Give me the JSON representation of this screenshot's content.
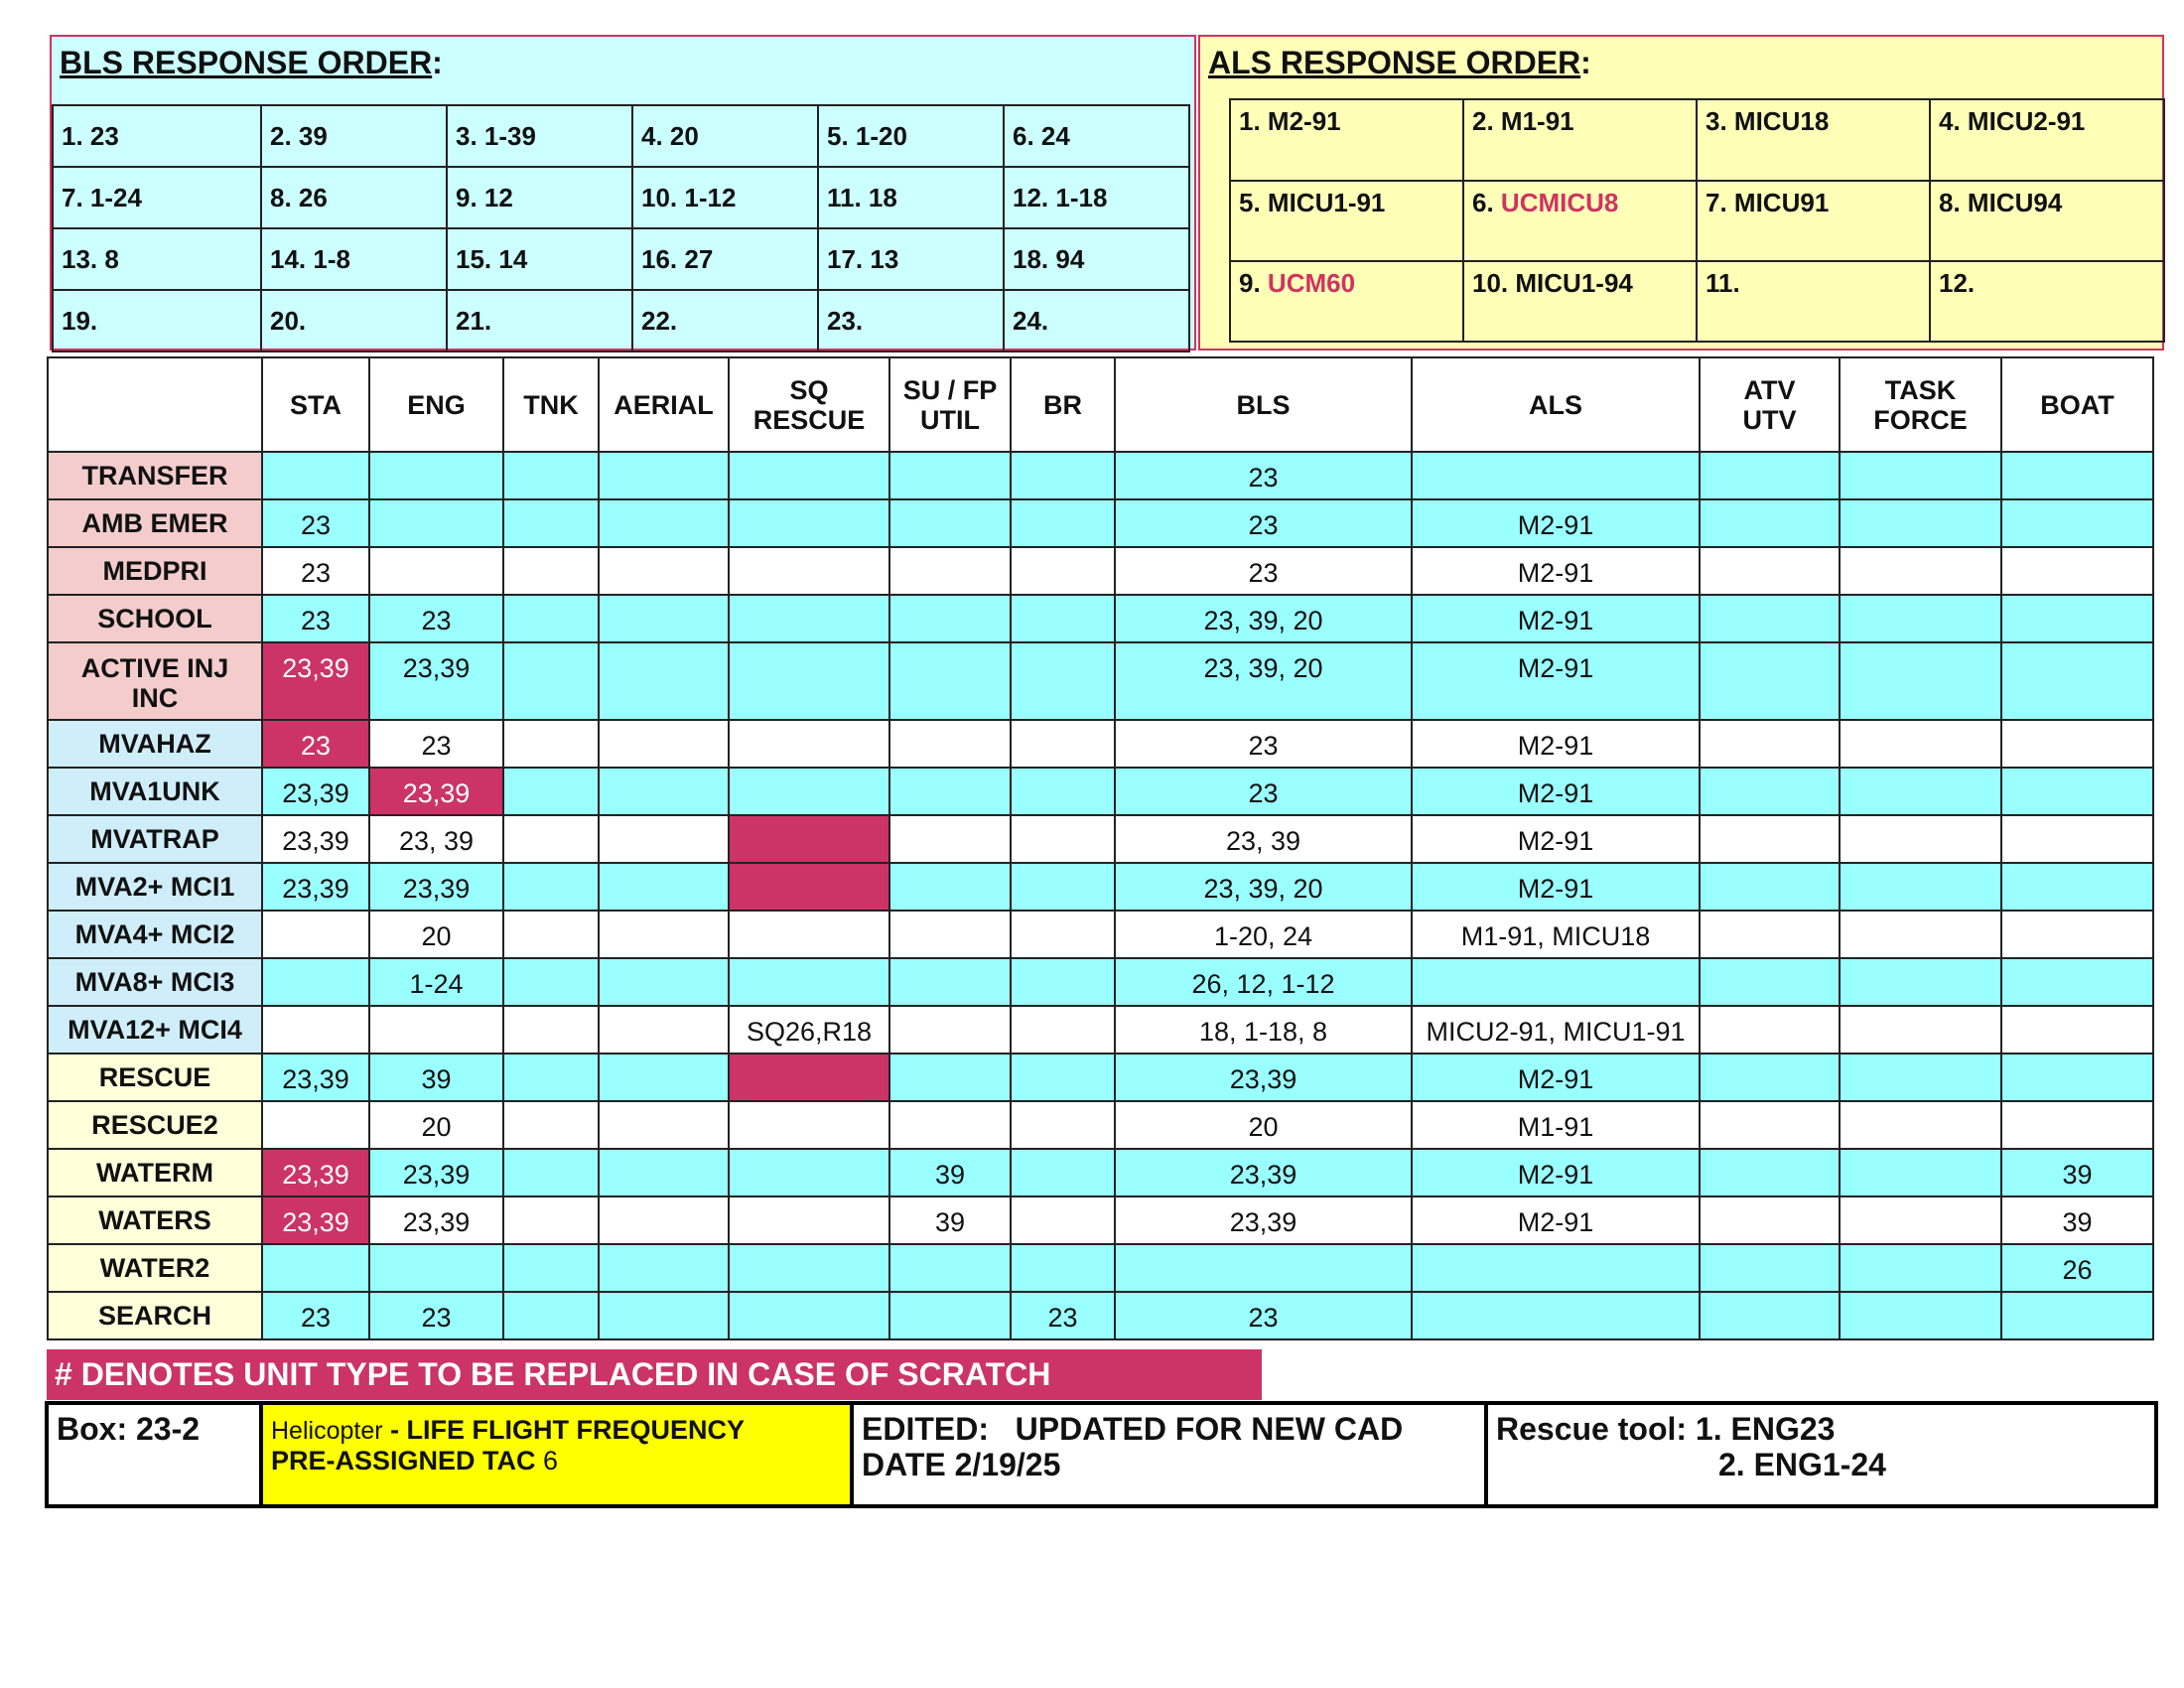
{
  "bls": {
    "title": "BLS RESPONSE ORDER",
    "colon": ":",
    "cells": [
      "1. 23",
      "2. 39",
      "3. 1-39",
      "4. 20",
      "5. 1-20",
      "6. 24",
      "7. 1-24",
      "8. 26",
      "9. 12",
      "10. 1-12",
      "11. 18",
      "12. 1-18",
      "13. 8",
      "14. 1-8",
      "15. 14",
      "16. 27",
      "17. 13",
      "18. 94",
      "19.",
      "20.",
      "21.",
      "22.",
      "23.",
      "24."
    ]
  },
  "als": {
    "title": "ALS RESPONSE ORDER",
    "colon": ":",
    "cells": [
      {
        "num": "1.",
        "unit": "M2-91"
      },
      {
        "num": "2.",
        "unit": "M1-91"
      },
      {
        "num": "3.",
        "unit": "MICU18"
      },
      {
        "num": "4.",
        "unit": "MICU2-91"
      },
      {
        "num": "5.",
        "unit": "MICU1-91"
      },
      {
        "num": "6.",
        "unit": "UCMICU8",
        "color": "#d0335f"
      },
      {
        "num": "7.",
        "unit": "MICU91"
      },
      {
        "num": "8.",
        "unit": "MICU94"
      },
      {
        "num": "9.",
        "unit": "UCM60",
        "color": "#d0335f"
      },
      {
        "num": "10.",
        "unit": "MICU1-94"
      },
      {
        "num": "11."
      },
      {
        "num": "12."
      }
    ]
  },
  "table": {
    "columns": [
      "STA",
      "ENG",
      "TNK",
      "AERIAL",
      [
        "SQ",
        "RESCUE"
      ],
      [
        "SU / FP",
        "UTIL"
      ],
      "BR",
      "BLS",
      "ALS",
      [
        "ATV",
        "UTV"
      ],
      [
        "TASK",
        "FORCE"
      ],
      "BOAT"
    ],
    "rows": [
      {
        "label": "TRANSFER",
        "label_color": "#f4cccc",
        "row_color": "#99ffff",
        "cells": [
          null,
          null,
          null,
          null,
          null,
          null,
          null,
          "23",
          null,
          null,
          null,
          null
        ]
      },
      {
        "label": "AMB EMER",
        "label_color": "#f4cccc",
        "row_color": "#99ffff",
        "cells": [
          "23",
          null,
          null,
          null,
          null,
          null,
          null,
          "23",
          "M2-91",
          null,
          null,
          null
        ]
      },
      {
        "label": "MEDPRI",
        "label_color": "#f4cccc",
        "row_color": "#ffffff",
        "cells": [
          "23",
          null,
          null,
          null,
          null,
          null,
          null,
          "23",
          "M2-91",
          null,
          null,
          null
        ]
      },
      {
        "label": "SCHOOL",
        "label_color": "#f4cccc",
        "row_color": "#99ffff",
        "cells": [
          "23",
          "23",
          null,
          null,
          null,
          null,
          null,
          "23, 39, 20",
          "M2-91",
          null,
          null,
          null
        ]
      },
      {
        "label": [
          "ACTIVE INJ",
          "INC"
        ],
        "label_color": "#f4cccc",
        "row_color": "#99ffff",
        "cells": [
          {
            "text": "23,39",
            "color": "#cc3366"
          },
          "23,39",
          null,
          null,
          null,
          null,
          null,
          "23, 39, 20",
          "M2-91",
          null,
          null,
          null
        ]
      },
      {
        "label": "MVAHAZ",
        "label_color": "#cfeefa",
        "row_color": "#ffffff",
        "cells": [
          {
            "text": "23",
            "color": "#cc3366"
          },
          "23",
          null,
          null,
          null,
          null,
          null,
          "23",
          "M2-91",
          null,
          null,
          null
        ]
      },
      {
        "label": "MVA1UNK",
        "label_color": "#cfeefa",
        "row_color": "#99ffff",
        "cells": [
          "23,39",
          {
            "text": "23,39",
            "color": "#cc3366"
          },
          null,
          null,
          null,
          null,
          null,
          "23",
          "M2-91",
          null,
          null,
          null
        ]
      },
      {
        "label": "MVATRAP",
        "label_color": "#cfeefa",
        "row_color": "#ffffff",
        "cells": [
          "23,39",
          "23, 39",
          null,
          null,
          {
            "color": "#cc3366"
          },
          null,
          null,
          "23, 39",
          "M2-91",
          null,
          null,
          null
        ]
      },
      {
        "label": "MVA2+ MCI1",
        "label_color": "#cfeefa",
        "row_color": "#99ffff",
        "cells": [
          "23,39",
          "23,39",
          null,
          null,
          {
            "color": "#cc3366"
          },
          null,
          null,
          "23, 39, 20",
          "M2-91",
          null,
          null,
          null
        ]
      },
      {
        "label": "MVA4+ MCI2",
        "label_color": "#cfeefa",
        "row_color": "#ffffff",
        "cells": [
          null,
          "20",
          null,
          null,
          null,
          null,
          null,
          "1-20, 24",
          "M1-91, MICU18",
          null,
          null,
          null
        ]
      },
      {
        "label": "MVA8+ MCI3",
        "label_color": "#cfeefa",
        "row_color": "#99ffff",
        "cells": [
          null,
          "1-24",
          null,
          null,
          null,
          null,
          null,
          "26, 12, 1-12",
          null,
          null,
          null,
          null
        ]
      },
      {
        "label": "MVA12+ MCI4",
        "label_color": "#cfeefa",
        "row_color": "#ffffff",
        "cells": [
          null,
          null,
          null,
          null,
          "SQ26,R18",
          null,
          null,
          "18, 1-18, 8",
          "MICU2-91, MICU1-91",
          null,
          null,
          null
        ]
      },
      {
        "label": "RESCUE",
        "label_color": "#ffffd9",
        "row_color": "#99ffff",
        "cells": [
          "23,39",
          "39",
          null,
          null,
          {
            "color": "#cc3366"
          },
          null,
          null,
          "23,39",
          "M2-91",
          null,
          null,
          null
        ]
      },
      {
        "label": "RESCUE2",
        "label_color": "#ffffd9",
        "row_color": "#ffffff",
        "cells": [
          null,
          "20",
          null,
          null,
          null,
          null,
          null,
          "20",
          "M1-91",
          null,
          null,
          null
        ]
      },
      {
        "label": "WATERM",
        "label_color": "#ffffd9",
        "row_color": "#99ffff",
        "cells": [
          {
            "text": "23,39",
            "color": "#cc3366"
          },
          "23,39",
          null,
          null,
          null,
          "39",
          null,
          "23,39",
          "M2-91",
          null,
          null,
          "39"
        ]
      },
      {
        "label": "WATERS",
        "label_color": "#ffffd9",
        "row_color": "#ffffff",
        "cells": [
          {
            "text": "23,39",
            "color": "#cc3366"
          },
          "23,39",
          null,
          null,
          null,
          "39",
          null,
          "23,39",
          "M2-91",
          null,
          null,
          "39"
        ]
      },
      {
        "label": "WATER2",
        "label_color": "#ffffd9",
        "row_color": "#99ffff",
        "cells": [
          null,
          null,
          null,
          null,
          null,
          null,
          null,
          null,
          null,
          null,
          null,
          "26"
        ]
      },
      {
        "label": "SEARCH",
        "label_color": "#ffffd9",
        "row_color": "#99ffff",
        "cells": [
          "23",
          "23",
          null,
          null,
          null,
          null,
          "23",
          "23",
          null,
          null,
          null,
          null
        ]
      }
    ]
  },
  "banner": "# DENOTES UNIT  TYPE TO BE REPLACED IN CASE OF SCRATCH",
  "footer": {
    "box": "Box: 23-2",
    "helicopter": {
      "lead": "Helicopter",
      "rest": " - LIFE FLIGHT FREQUENCY",
      "line2": "PRE-ASSIGNED TAC",
      "tac": "6"
    },
    "edited": [
      "EDITED:   UPDATED FOR NEW CAD",
      "DATE 2/19/25"
    ],
    "rescue_tool": [
      "Rescue tool: 1. ENG23",
      "2. ENG1-24"
    ]
  }
}
